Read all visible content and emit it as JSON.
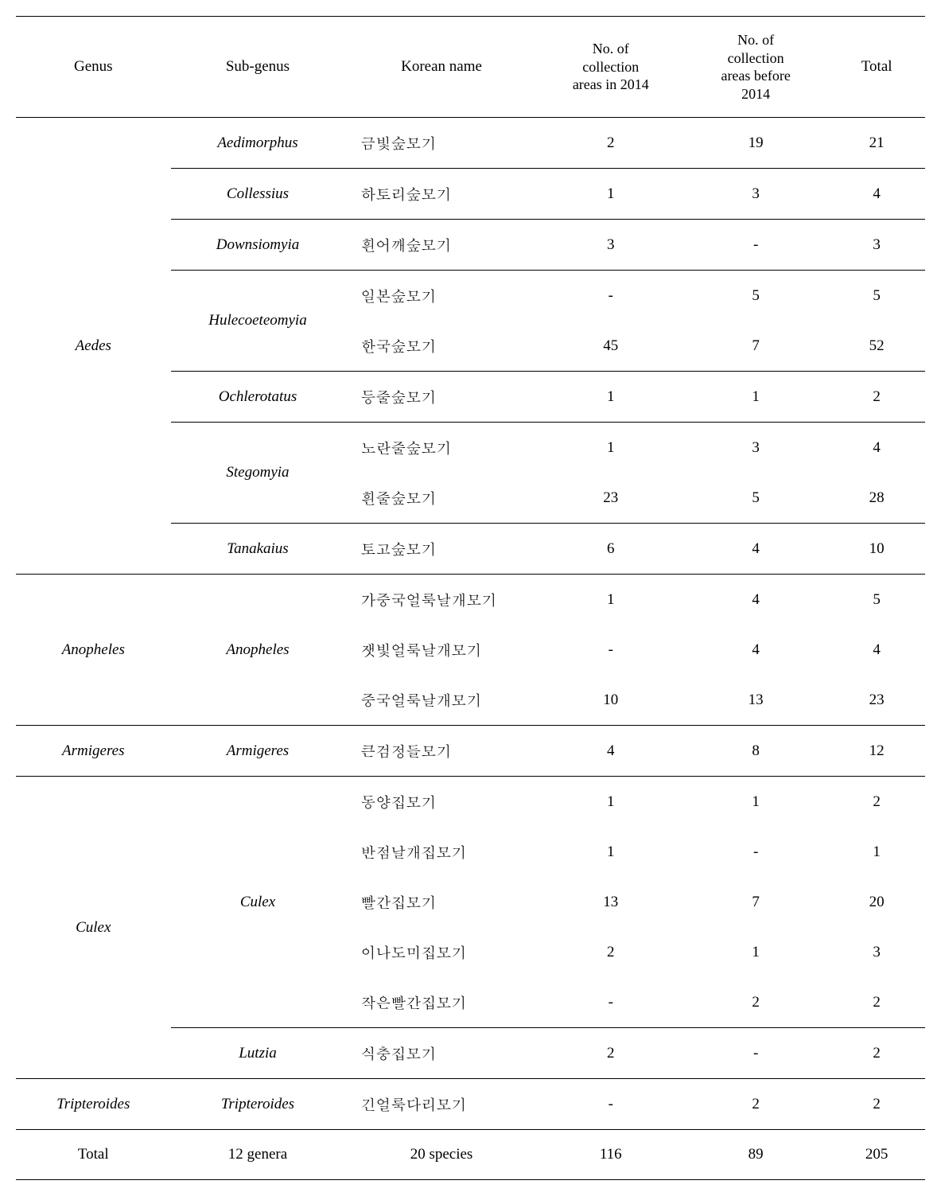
{
  "headers": {
    "genus": "Genus",
    "subgenus": "Sub-genus",
    "korean": "Korean name",
    "col2014": "No. of\ncollection\nareas in 2014",
    "colBefore": "No. of\ncollection\nareas before\n2014",
    "total": "Total"
  },
  "rows": [
    {
      "genus": "Aedes",
      "subgenus": "Aedimorphus",
      "korean": "금빛숲모기",
      "v1": "2",
      "v2": "19",
      "total": "21",
      "subgenusRowSpan": 1,
      "genusRowSpan": 9,
      "genusBorder": "none",
      "subBorder": "none"
    },
    {
      "subgenus": "Collessius",
      "korean": "하토리숲모기",
      "v1": "1",
      "v2": "3",
      "total": "4",
      "subgenusRowSpan": 1,
      "subBorder": "thin"
    },
    {
      "subgenus": "Downsiomyia",
      "korean": "흰어깨숲모기",
      "v1": "3",
      "v2": "-",
      "total": "3",
      "subgenusRowSpan": 1,
      "subBorder": "thin"
    },
    {
      "subgenus": "Hulecoeteomyia",
      "korean": "일본숲모기",
      "v1": "-",
      "v2": "5",
      "total": "5",
      "subgenusRowSpan": 2,
      "subBorder": "thin"
    },
    {
      "korean": "한국숲모기",
      "v1": "45",
      "v2": "7",
      "total": "52",
      "subBorder": "none"
    },
    {
      "subgenus": "Ochlerotatus",
      "korean": "등줄숲모기",
      "v1": "1",
      "v2": "1",
      "total": "2",
      "subgenusRowSpan": 1,
      "subBorder": "thin"
    },
    {
      "subgenus": "Stegomyia",
      "korean": "노란줄숲모기",
      "v1": "1",
      "v2": "3",
      "total": "4",
      "subgenusRowSpan": 2,
      "subBorder": "thin"
    },
    {
      "korean": "흰줄숲모기",
      "v1": "23",
      "v2": "5",
      "total": "28",
      "subBorder": "none"
    },
    {
      "subgenus": "Tanakaius",
      "korean": "토고숲모기",
      "v1": "6",
      "v2": "4",
      "total": "10",
      "subgenusRowSpan": 1,
      "subBorder": "thin"
    },
    {
      "genus": "Anopheles",
      "subgenus": "Anopheles",
      "korean": "가중국얼룩날개모기",
      "v1": "1",
      "v2": "4",
      "total": "5",
      "subgenusRowSpan": 3,
      "genusRowSpan": 3,
      "genusBorder": "thick"
    },
    {
      "korean": "잿빛얼룩날개모기",
      "v1": "-",
      "v2": "4",
      "total": "4",
      "subBorder": "none"
    },
    {
      "korean": "중국얼룩날개모기",
      "v1": "10",
      "v2": "13",
      "total": "23",
      "subBorder": "none"
    },
    {
      "genus": "Armigeres",
      "subgenus": "Armigeres",
      "korean": "큰검정들모기",
      "v1": "4",
      "v2": "8",
      "total": "12",
      "subgenusRowSpan": 1,
      "genusRowSpan": 1,
      "genusBorder": "thick"
    },
    {
      "genus": "Culex",
      "subgenus": "Culex",
      "korean": "동양집모기",
      "v1": "1",
      "v2": "1",
      "total": "2",
      "subgenusRowSpan": 5,
      "genusRowSpan": 6,
      "genusBorder": "thick"
    },
    {
      "korean": "반점날개집모기",
      "v1": "1",
      "v2": "-",
      "total": "1",
      "subBorder": "none"
    },
    {
      "korean": "빨간집모기",
      "v1": "13",
      "v2": "7",
      "total": "20",
      "subBorder": "none"
    },
    {
      "korean": "이나도미집모기",
      "v1": "2",
      "v2": "1",
      "total": "3",
      "subBorder": "none"
    },
    {
      "korean": "작은빨간집모기",
      "v1": "-",
      "v2": "2",
      "total": "2",
      "subBorder": "none"
    },
    {
      "subgenus": "Lutzia",
      "korean": "식충집모기",
      "v1": "2",
      "v2": "-",
      "total": "2",
      "subgenusRowSpan": 1,
      "subBorder": "thin"
    },
    {
      "genus": "Tripteroides",
      "subgenus": "Tripteroides",
      "korean": "긴얼룩다리모기",
      "v1": "-",
      "v2": "2",
      "total": "2",
      "subgenusRowSpan": 1,
      "genusRowSpan": 1,
      "genusBorder": "thick"
    }
  ],
  "totals": {
    "label": "Total",
    "genera": "12 genera",
    "species": "20 species",
    "v1": "116",
    "v2": "89",
    "total": "205"
  }
}
